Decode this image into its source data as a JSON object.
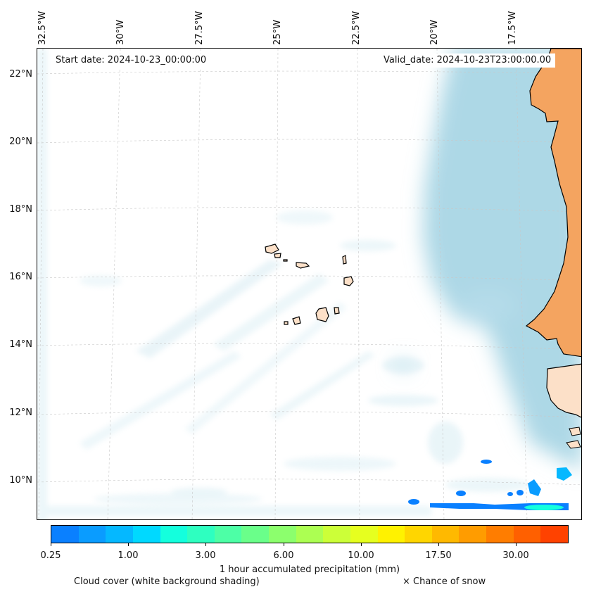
{
  "map": {
    "start_date": "Start date: 2024-10-23_00:00:00",
    "valid_date": "Valid_date: 2024-10-23T23:00:00.00",
    "lon_labels": [
      "32.5°W",
      "30°W",
      "27.5°W",
      "25°W",
      "22.5°W",
      "20°W",
      "17.5°W"
    ],
    "lat_labels": [
      "22°N",
      "20°N",
      "18°N",
      "16°N",
      "14°N",
      "12°N",
      "10°N"
    ],
    "region": "Cabo Verde and West African coast",
    "colors": {
      "cloud": "#add8e6",
      "land_shade": "#f4a460",
      "island_shade": "#fce0c8",
      "coastline": "#000000"
    }
  },
  "colorbar": {
    "title": "1 hour accumulated precipitation (mm)",
    "tick_labels": [
      "0.25",
      "1.00",
      "3.00",
      "6.00",
      "10.00",
      "17.50",
      "30.00"
    ],
    "colors": [
      "#0a80ff",
      "#0a9cff",
      "#05b8ff",
      "#00d9ff",
      "#14ffdd",
      "#2effc0",
      "#4dffa6",
      "#6aff8a",
      "#8cff6d",
      "#acff52",
      "#ccff38",
      "#e6ff1f",
      "#fff200",
      "#ffd600",
      "#ffb900",
      "#ff9c00",
      "#ff7d00",
      "#ff6000",
      "#ff4200"
    ]
  },
  "legend": {
    "cloud_cover": "Cloud cover (white background shading)",
    "snow": "× Chance of snow"
  }
}
